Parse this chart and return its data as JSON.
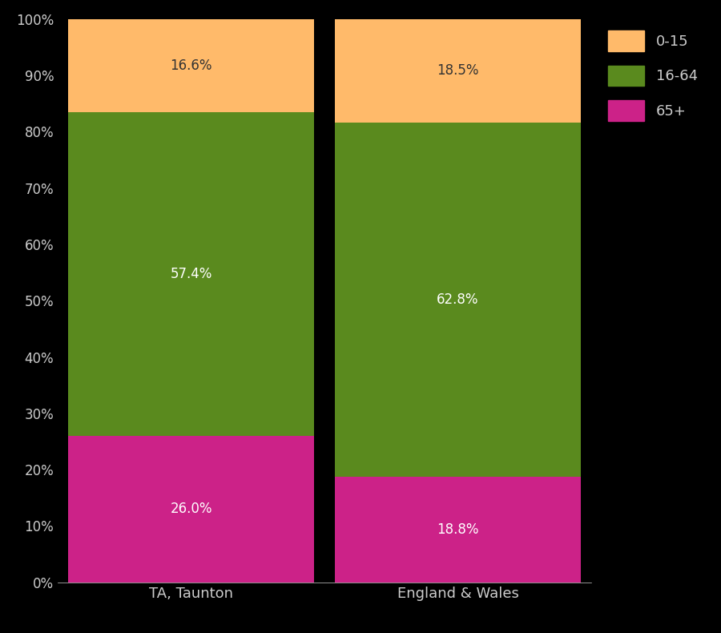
{
  "categories": [
    "TA, Taunton",
    "England & Wales"
  ],
  "segments": {
    "65+": [
      26.0,
      18.8
    ],
    "16-64": [
      57.4,
      62.8
    ],
    "0-15": [
      16.6,
      18.5
    ]
  },
  "colors": {
    "65+": "#CC2288",
    "16-64": "#5A8A1E",
    "0-15": "#FFBA6A"
  },
  "segment_order": [
    "65+",
    "16-64",
    "0-15"
  ],
  "legend_order": [
    "0-15",
    "16-64",
    "65+"
  ],
  "label_colors": {
    "65+": "#ffffff",
    "16-64": "#ffffff",
    "0-15": "#333333"
  },
  "background_color": "#000000",
  "text_color": "#cccccc",
  "ylim": [
    0,
    100
  ],
  "yticks": [
    0,
    10,
    20,
    30,
    40,
    50,
    60,
    70,
    80,
    90,
    100
  ],
  "ytick_labels": [
    "0%",
    "10%",
    "20%",
    "30%",
    "40%",
    "50%",
    "60%",
    "70%",
    "80%",
    "90%",
    "100%"
  ],
  "figsize": [
    9.0,
    7.9
  ],
  "dpi": 100
}
